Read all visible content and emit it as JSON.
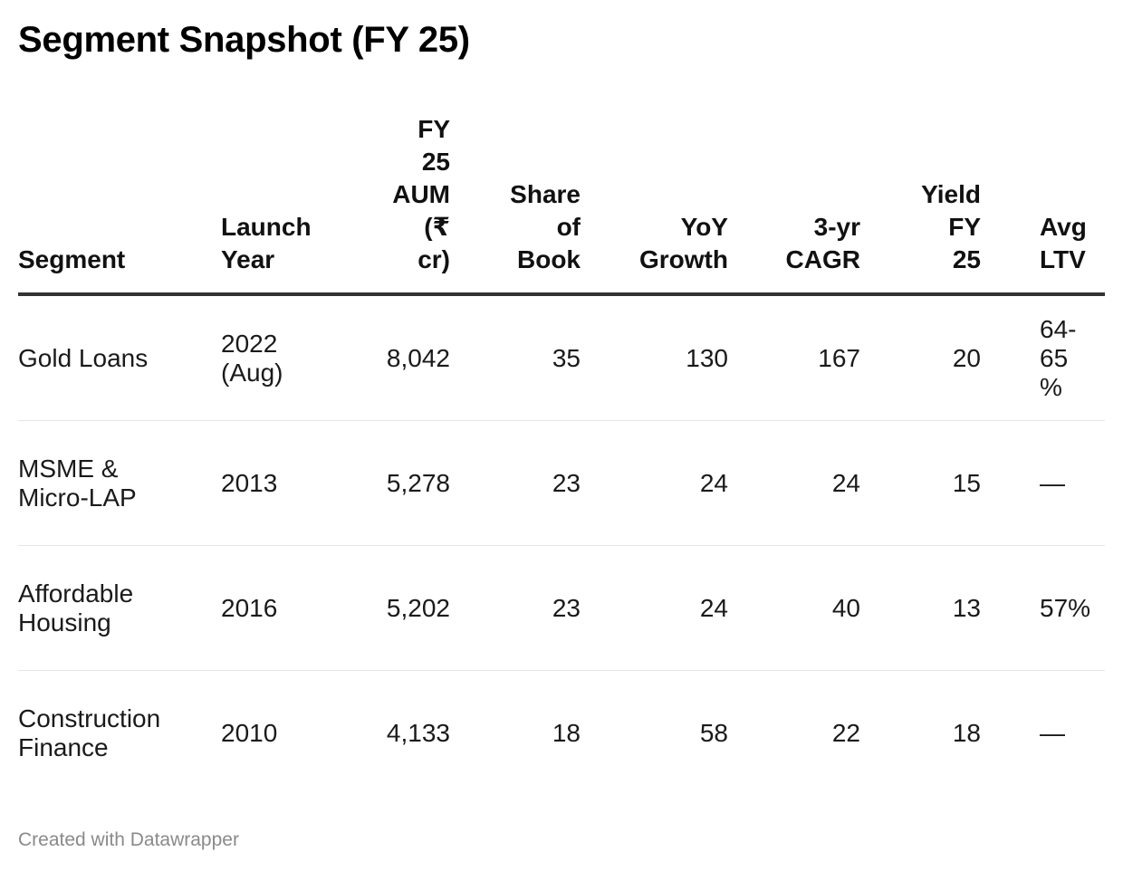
{
  "title": "Segment Snapshot (FY 25)",
  "footer": "Created with Datawrapper",
  "chart_data": {
    "type": "table",
    "title": "Segment Snapshot (FY 25)",
    "columns": [
      {
        "lines": [
          "Segment"
        ]
      },
      {
        "lines": [
          "Launch",
          "Year"
        ]
      },
      {
        "lines": [
          "FY",
          "25",
          "AUM",
          "(₹",
          "cr)"
        ]
      },
      {
        "lines": [
          "Share",
          "of",
          "Book"
        ]
      },
      {
        "lines": [
          "YoY",
          "Growth"
        ]
      },
      {
        "lines": [
          "3-yr",
          "CAGR"
        ]
      },
      {
        "lines": [
          "Yield",
          "FY",
          "25"
        ]
      },
      {
        "lines": [
          "Avg",
          "LTV"
        ]
      }
    ],
    "rows": [
      {
        "segment": [
          "Gold Loans"
        ],
        "launch": [
          "2022",
          "(Aug)"
        ],
        "aum": "8,042",
        "share": "35",
        "yoy": "130",
        "cagr": "167",
        "yield": "20",
        "ltv": [
          "64-",
          "65",
          "%"
        ]
      },
      {
        "segment": [
          "MSME &",
          "Micro-LAP"
        ],
        "launch": [
          "2013"
        ],
        "aum": "5,278",
        "share": "23",
        "yoy": "24",
        "cagr": "24",
        "yield": "15",
        "ltv": [
          "—"
        ]
      },
      {
        "segment": [
          "Affordable",
          "Housing"
        ],
        "launch": [
          "2016"
        ],
        "aum": "5,202",
        "share": "23",
        "yoy": "24",
        "cagr": "40",
        "yield": "13",
        "ltv": [
          "57%"
        ]
      },
      {
        "segment": [
          "Construction",
          "Finance"
        ],
        "launch": [
          "2010"
        ],
        "aum": "4,133",
        "share": "18",
        "yoy": "58",
        "cagr": "22",
        "yield": "18",
        "ltv": [
          "—"
        ]
      }
    ]
  }
}
